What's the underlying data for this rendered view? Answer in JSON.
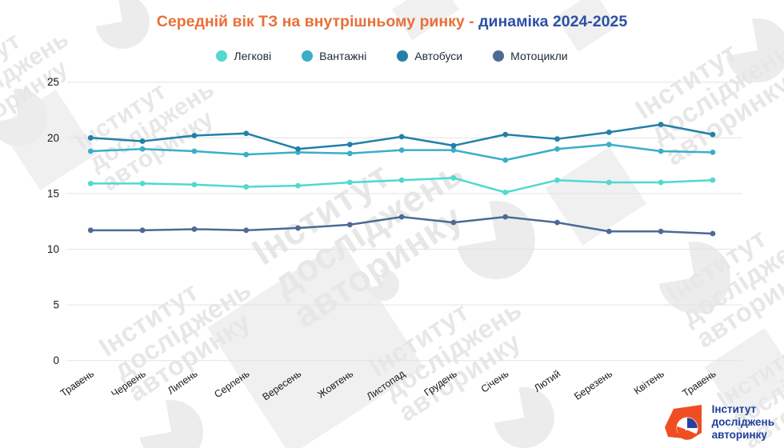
{
  "title": {
    "main": "Середній вік ТЗ на внутрішньому ринку - ",
    "suffix": "динаміка 2024-2025",
    "main_color": "#E8703A",
    "suffix_color": "#2D50A5"
  },
  "watermark": {
    "line1": "Інститут",
    "line2": "досліджень",
    "line3": "авторинку"
  },
  "logo": {
    "line1": "Інститут",
    "line2": "досліджень",
    "line3": "авторинку",
    "accent_color": "#EF4E23",
    "text_color": "#1E3D9B"
  },
  "chart_data": {
    "type": "line",
    "title": "Середній вік ТЗ на внутрішньому ринку - динаміка 2024-2025",
    "xlabel": "",
    "ylabel": "",
    "ylim": [
      0,
      25
    ],
    "yticks": [
      0,
      5,
      10,
      15,
      20,
      25
    ],
    "grid": true,
    "legend_position": "top",
    "categories": [
      "Травень",
      "Червень",
      "Липень",
      "Серпень",
      "Вересень",
      "Жовтень",
      "Листопад",
      "Грудень",
      "Січень",
      "Лютий",
      "Березень",
      "Квітень",
      "Травень"
    ],
    "series": [
      {
        "name": "Легкові",
        "color": "#4FD9CF",
        "values": [
          15.9,
          15.9,
          15.8,
          15.6,
          15.7,
          16.0,
          16.2,
          16.4,
          15.1,
          16.2,
          16.0,
          16.0,
          16.2
        ]
      },
      {
        "name": "Вантажні",
        "color": "#3AAECB",
        "values": [
          18.8,
          19.0,
          18.8,
          18.5,
          18.7,
          18.6,
          18.9,
          18.9,
          18.0,
          19.0,
          19.4,
          18.8,
          18.7
        ]
      },
      {
        "name": "Автобуси",
        "color": "#2280A8",
        "values": [
          20.0,
          19.7,
          20.2,
          20.4,
          19.0,
          19.4,
          20.1,
          19.3,
          20.3,
          19.9,
          20.5,
          21.2,
          20.3
        ]
      },
      {
        "name": "Мотоцикли",
        "color": "#4D6A96",
        "values": [
          11.7,
          11.7,
          11.8,
          11.7,
          11.9,
          12.2,
          12.9,
          12.4,
          12.9,
          12.4,
          11.6,
          11.6,
          11.4
        ]
      }
    ]
  }
}
